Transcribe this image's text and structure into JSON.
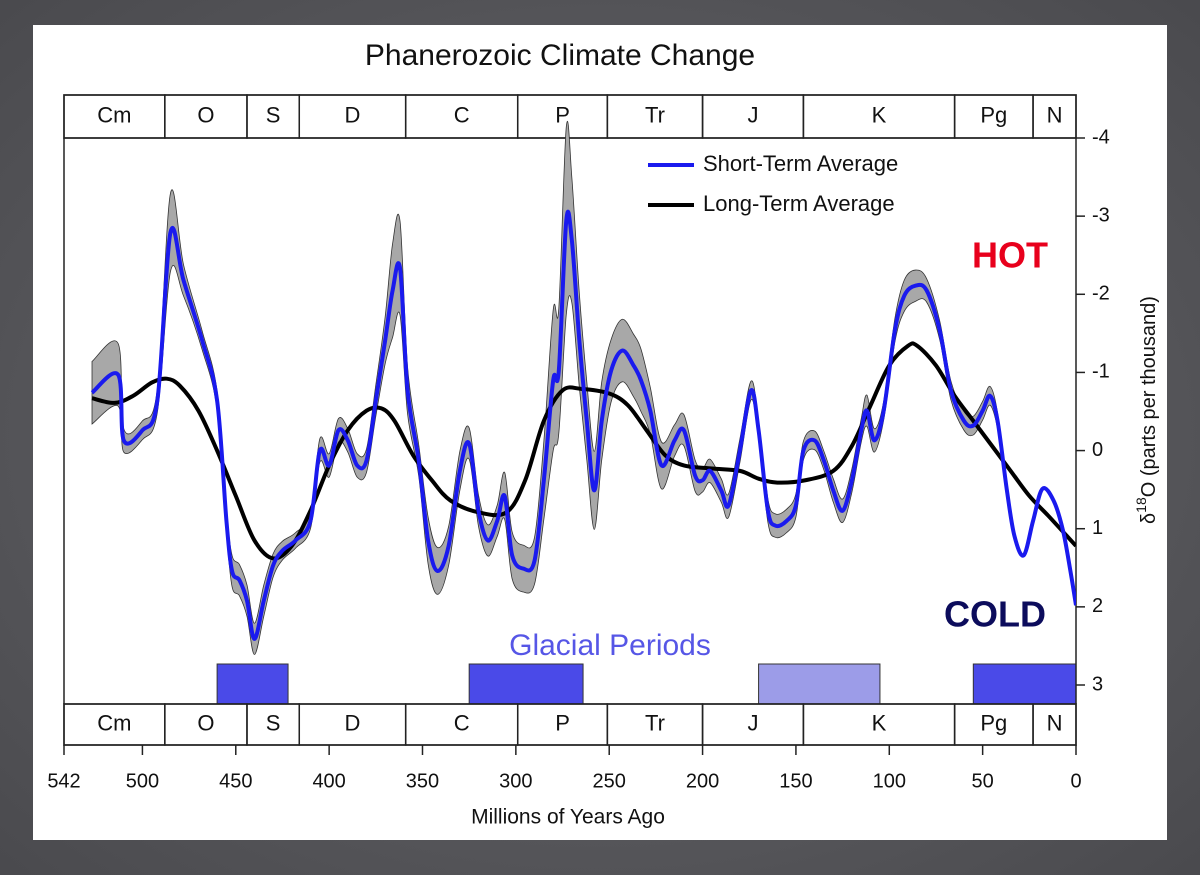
{
  "chart_data": {
    "type": "line",
    "title": "Phanerozoic Climate Change",
    "xlabel": "Millions of Years Ago",
    "ylabel": [
      "δ",
      "18",
      "O (parts per thousand)"
    ],
    "xlim": [
      542,
      0
    ],
    "xticks": [
      542,
      500,
      450,
      400,
      350,
      300,
      250,
      200,
      150,
      100,
      50,
      0
    ],
    "ylim": [
      3,
      -4
    ],
    "yticks": [
      -4,
      -3,
      -2,
      -1,
      0,
      1,
      2,
      3
    ],
    "legend": "upper right",
    "annotations": [
      {
        "text": "HOT",
        "color": "#e8001c"
      },
      {
        "text": "COLD",
        "color": "#0c0c5c"
      }
    ],
    "periods": [
      {
        "label": "Cm",
        "start": 542,
        "end": 488
      },
      {
        "label": "O",
        "start": 488,
        "end": 444
      },
      {
        "label": "S",
        "start": 444,
        "end": 416
      },
      {
        "label": "D",
        "start": 416,
        "end": 359
      },
      {
        "label": "C",
        "start": 359,
        "end": 299
      },
      {
        "label": "P",
        "start": 299,
        "end": 251
      },
      {
        "label": "Tr",
        "start": 251,
        "end": 200
      },
      {
        "label": "J",
        "start": 200,
        "end": 146
      },
      {
        "label": "K",
        "start": 146,
        "end": 65
      },
      {
        "label": "Pg",
        "start": 65,
        "end": 23
      },
      {
        "label": "N",
        "start": 23,
        "end": 0
      }
    ],
    "glacial_label": "Glacial Periods",
    "glacial_color": "#5656e6",
    "glacial_periods": [
      {
        "start": 460,
        "end": 422,
        "color": "#4a4ae8"
      },
      {
        "start": 325,
        "end": 264,
        "color": "#4a4ae8"
      },
      {
        "start": 170,
        "end": 105,
        "color": "#9c9ce8"
      },
      {
        "start": 55,
        "end": 0,
        "color": "#4a4ae8"
      }
    ],
    "series": [
      {
        "name": "Short-Term Average",
        "color": "#1a1aee",
        "band_color": "#a8a8a8",
        "x": [
          527,
          513,
          510,
          500,
          492,
          485,
          478,
          468,
          460,
          455,
          452,
          448,
          444,
          440,
          435,
          430,
          425,
          418,
          410,
          405,
          400,
          395,
          390,
          385,
          380,
          375,
          370,
          366,
          362,
          358,
          352,
          347,
          342,
          336,
          330,
          325,
          320,
          315,
          310,
          306,
          302,
          296,
          290,
          285,
          280,
          277,
          273,
          270,
          266,
          262,
          258,
          254,
          249,
          243,
          237,
          233,
          228,
          222,
          215,
          210,
          204,
          200,
          196,
          190,
          186,
          180,
          174,
          170,
          165,
          161,
          155,
          150,
          146,
          140,
          135,
          130,
          125,
          120,
          115,
          112,
          108,
          103,
          97,
          92,
          86,
          80,
          73,
          67,
          60,
          55,
          50,
          46,
          42,
          37,
          33,
          28,
          23,
          18,
          12,
          7,
          3,
          0
        ],
        "values": [
          -0.74,
          -0.97,
          -0.13,
          -0.26,
          -0.64,
          -2.79,
          -2.18,
          -1.41,
          -0.64,
          0.9,
          1.54,
          1.66,
          1.92,
          2.41,
          1.92,
          1.47,
          1.28,
          1.15,
          0.9,
          0,
          0.19,
          -0.26,
          -0.13,
          0.19,
          0.13,
          -0.64,
          -1.41,
          -2.05,
          -2.33,
          -0.77,
          0.13,
          1.15,
          1.54,
          1.22,
          0.26,
          -0.09,
          0.77,
          1.15,
          0.9,
          0.58,
          1.34,
          1.51,
          1.41,
          0.38,
          -0.9,
          -1.02,
          -2.94,
          -2.69,
          -1.41,
          -0.38,
          0.51,
          -0.38,
          -1.02,
          -1.28,
          -1.09,
          -0.9,
          -0.51,
          0.19,
          -0.13,
          -0.26,
          0.32,
          0.38,
          0.26,
          0.51,
          0.7,
          0,
          -0.77,
          -0.26,
          0.77,
          0.96,
          0.9,
          0.7,
          0,
          -0.13,
          0.13,
          0.51,
          0.77,
          0.38,
          -0.26,
          -0.51,
          -0.13,
          -0.51,
          -1.54,
          -1.98,
          -2.11,
          -2.05,
          -1.54,
          -0.77,
          -0.38,
          -0.32,
          -0.51,
          -0.7,
          -0.38,
          0.51,
          1.09,
          1.34,
          0.9,
          0.49,
          0.64,
          1.02,
          1.54,
          1.98
        ],
        "error": [
          0.4,
          0.4,
          0.15,
          0.12,
          0.15,
          0.5,
          0.2,
          0.12,
          0.12,
          0.15,
          0.2,
          0.2,
          0.2,
          0.2,
          0.2,
          0.15,
          0.12,
          0.1,
          0.1,
          0.15,
          0.15,
          0.15,
          0.15,
          0.15,
          0.15,
          0.2,
          0.3,
          0.6,
          0.6,
          0.3,
          0.2,
          0.3,
          0.3,
          0.25,
          0.25,
          0.2,
          0.2,
          0.2,
          0.2,
          0.3,
          0.3,
          0.3,
          0.3,
          0.5,
          0.9,
          0.8,
          1.2,
          0.8,
          0.6,
          0.5,
          0.5,
          0.5,
          0.4,
          0.4,
          0.4,
          0.4,
          0.3,
          0.3,
          0.2,
          0.2,
          0.2,
          0.15,
          0.15,
          0.15,
          0.15,
          0.15,
          0.12,
          0.12,
          0.15,
          0.15,
          0.15,
          0.15,
          0.12,
          0.12,
          0.12,
          0.15,
          0.15,
          0.15,
          0.15,
          0.2,
          0.15,
          0.12,
          0.15,
          0.2,
          0.2,
          0.15,
          0.12,
          0.12,
          0.12,
          0.12,
          0.12,
          0.12,
          0.1,
          0,
          0,
          0,
          0,
          0,
          0,
          0,
          0,
          0
        ]
      },
      {
        "name": "Long-Term Average",
        "color": "#000000",
        "x": [
          527,
          515,
          505,
          495,
          487,
          480,
          470,
          460,
          450,
          440,
          430,
          420,
          410,
          400,
          390,
          380,
          372,
          365,
          355,
          345,
          335,
          320,
          305,
          295,
          285,
          275,
          265,
          250,
          240,
          230,
          220,
          210,
          195,
          180,
          170,
          160,
          145,
          130,
          120,
          110,
          100,
          90,
          85,
          75,
          65,
          55,
          45,
          35,
          25,
          15,
          5,
          0
        ],
        "values": [
          -0.67,
          -0.61,
          -0.7,
          -0.87,
          -0.92,
          -0.83,
          -0.51,
          0,
          0.58,
          1.15,
          1.38,
          1.22,
          0.77,
          0.19,
          -0.26,
          -0.51,
          -0.54,
          -0.38,
          0.06,
          0.38,
          0.64,
          0.79,
          0.79,
          0.38,
          -0.38,
          -0.77,
          -0.79,
          -0.73,
          -0.58,
          -0.26,
          0.06,
          0.19,
          0.23,
          0.26,
          0.36,
          0.41,
          0.38,
          0.26,
          -0.06,
          -0.58,
          -1.09,
          -1.34,
          -1.34,
          -1.09,
          -0.7,
          -0.38,
          -0.06,
          0.26,
          0.58,
          0.83,
          1.09,
          1.22
        ]
      }
    ]
  }
}
